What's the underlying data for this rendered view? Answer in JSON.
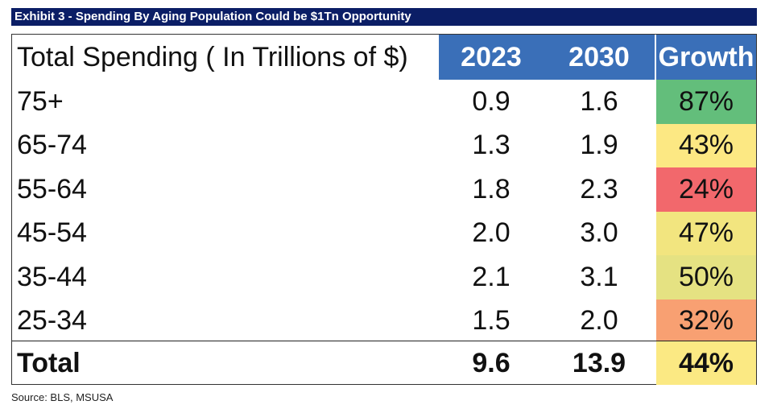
{
  "title": "Exhibit 3 - Spending By Aging Population Could be $1Tn Opportunity",
  "source": "Source: BLS, MSUSA",
  "colors": {
    "title_bg": "#0b1e66",
    "header_bg": "#3a6fb8",
    "growth_87": "#63be7b",
    "growth_50": "#e5e282",
    "growth_47": "#f2e57f",
    "growth_44": "#fbe983",
    "growth_43": "#fce883",
    "growth_32": "#f8a072",
    "growth_24": "#f2686c"
  },
  "chart_data": {
    "type": "table",
    "title": "Exhibit 3 - Spending By Aging Population Could be $1Tn Opportunity",
    "columns": [
      "Total Spending ( In Trillions of $)",
      "2023",
      "2030",
      "Growth"
    ],
    "rows": [
      {
        "label": "75+",
        "v2023": "0.9",
        "v2030": "1.6",
        "growth": "87%",
        "color": "#63be7b"
      },
      {
        "label": "65-74",
        "v2023": "1.3",
        "v2030": "1.9",
        "growth": "43%",
        "color": "#fce883"
      },
      {
        "label": "55-64",
        "v2023": "1.8",
        "v2030": "2.3",
        "growth": "24%",
        "color": "#f2686c"
      },
      {
        "label": "45-54",
        "v2023": "2.0",
        "v2030": "3.0",
        "growth": "47%",
        "color": "#f2e57f"
      },
      {
        "label": "35-44",
        "v2023": "2.1",
        "v2030": "3.1",
        "growth": "50%",
        "color": "#e5e282"
      },
      {
        "label": "25-34",
        "v2023": "1.5",
        "v2030": "2.0",
        "growth": "32%",
        "color": "#f8a072"
      }
    ],
    "total": {
      "label": "Total",
      "v2023": "9.6",
      "v2030": "13.9",
      "growth": "44%",
      "color": "#fbe983"
    }
  }
}
